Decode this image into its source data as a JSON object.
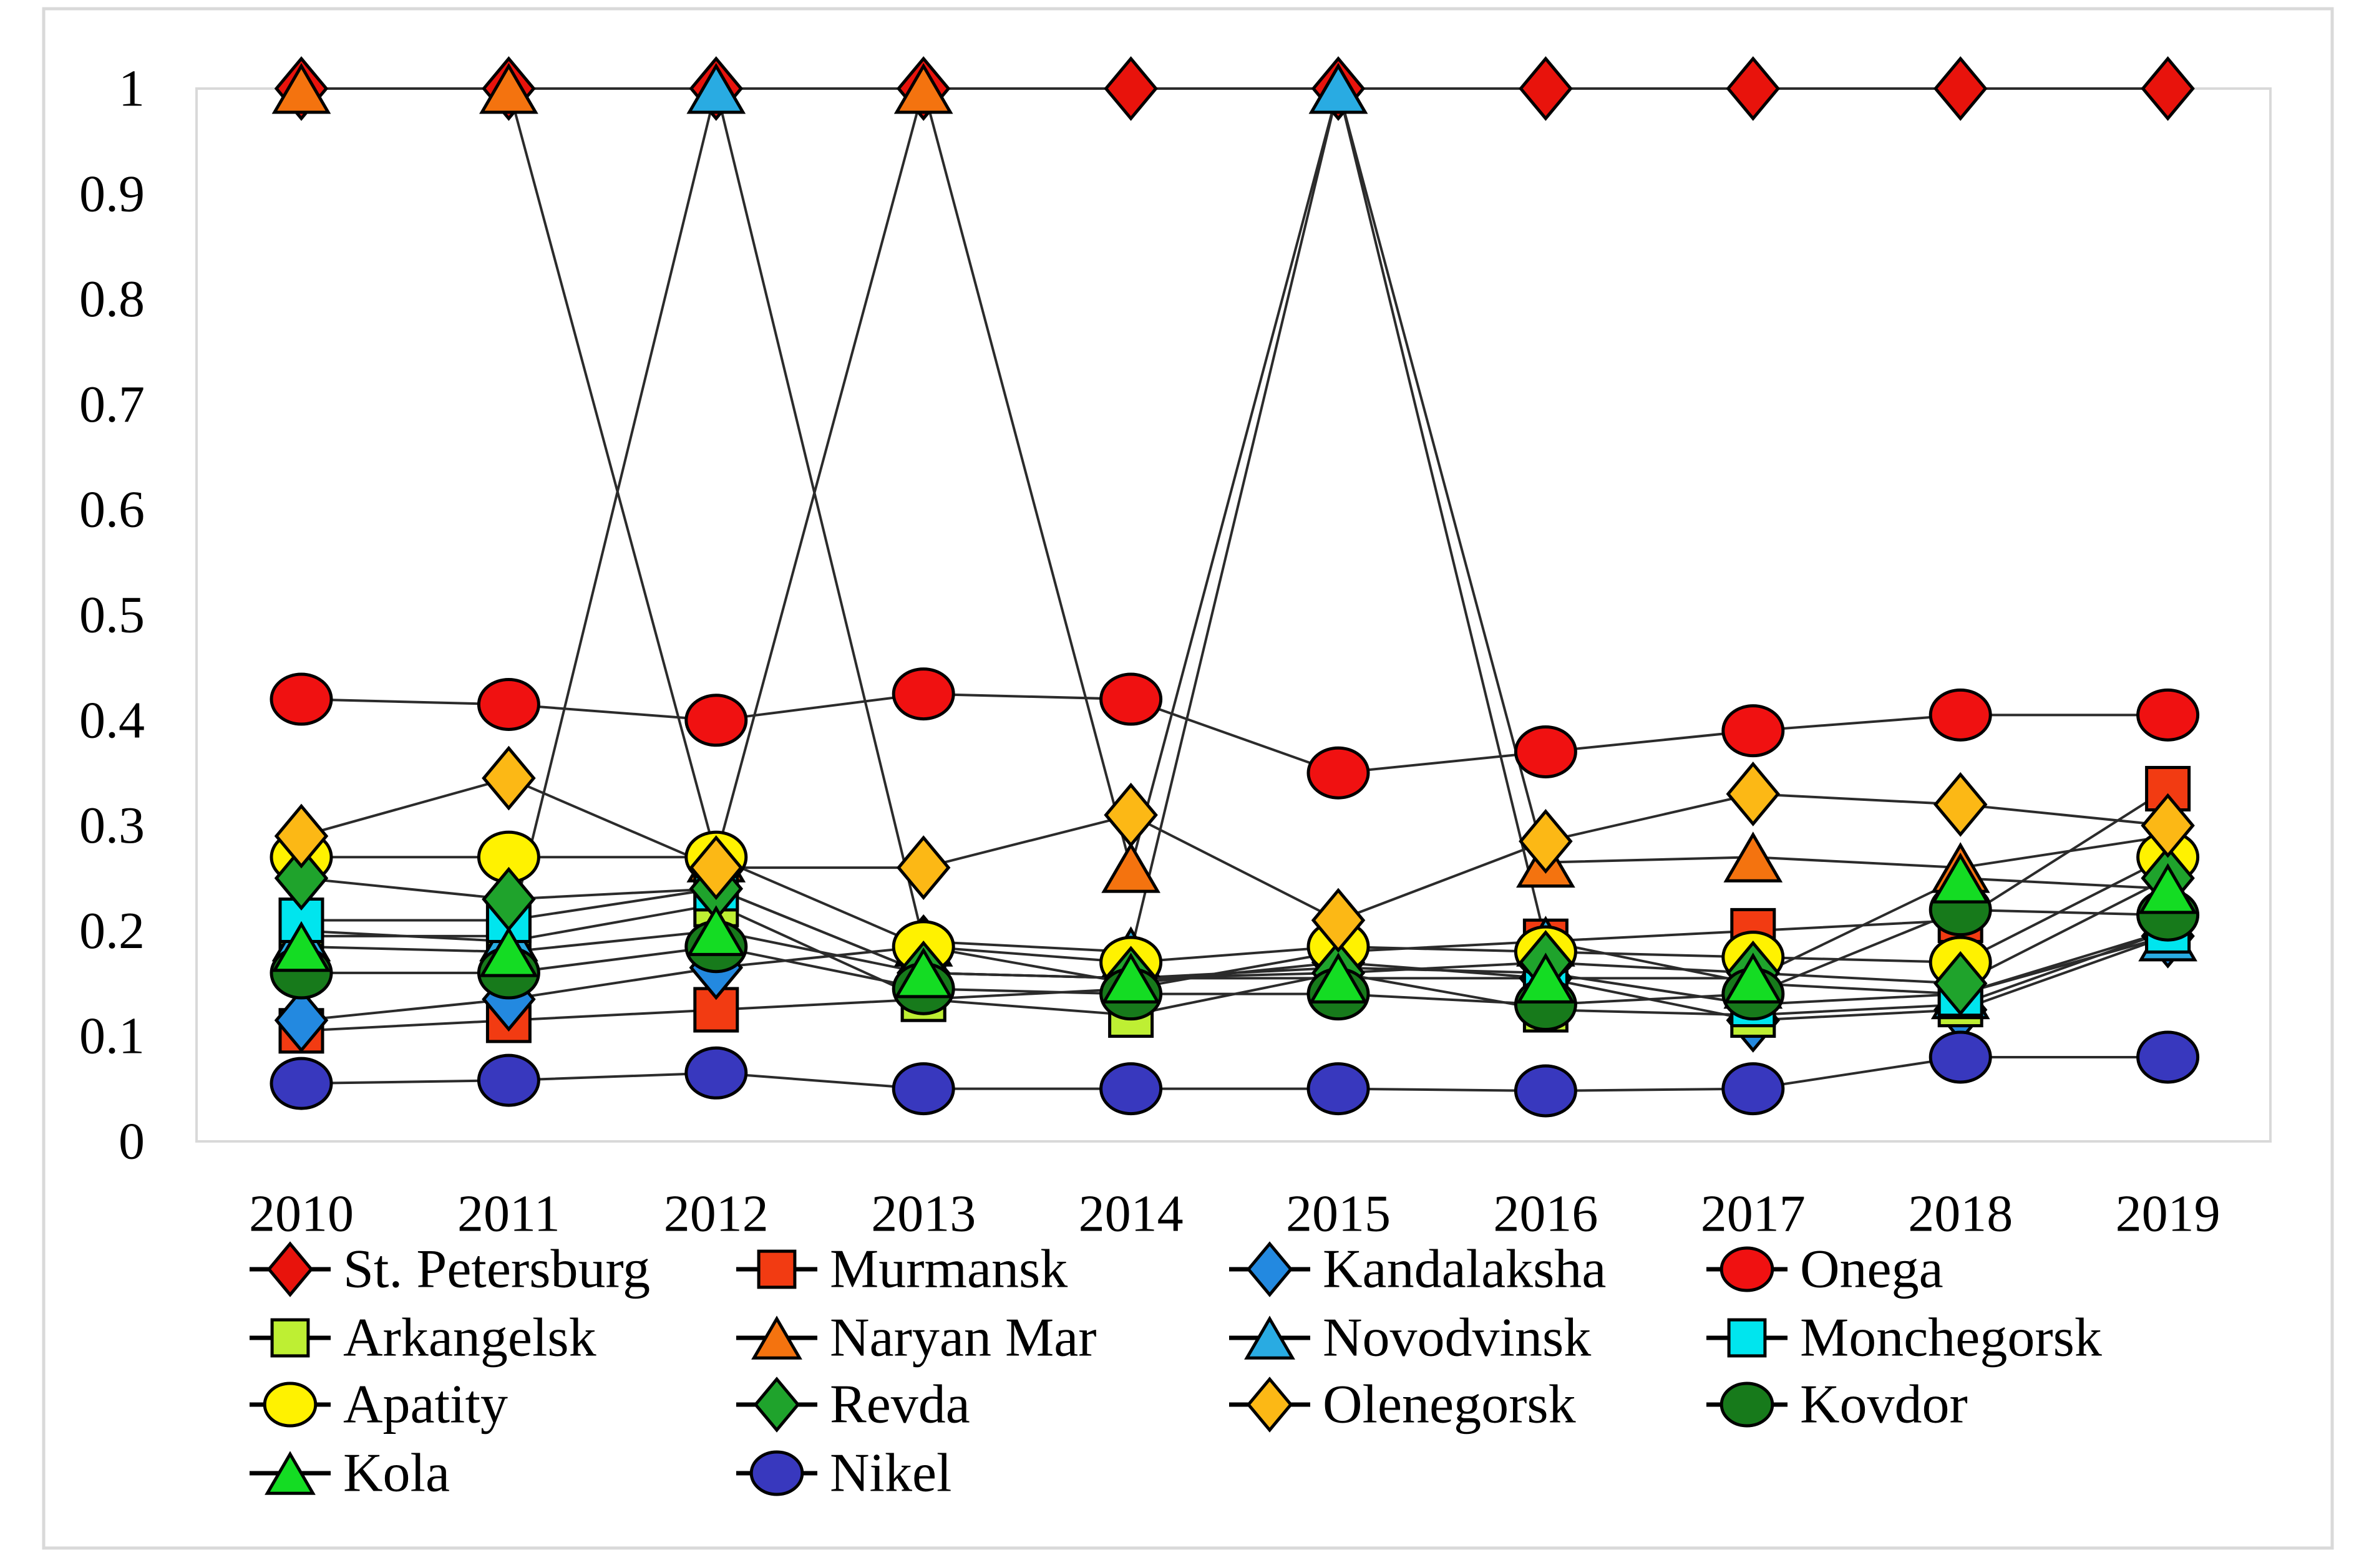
{
  "figure": {
    "border_color": "#D9D9D9",
    "plot_border_color": "#D9D9D9",
    "line_color": "#2B2B2B",
    "marker_outline_color": "#000000",
    "background": "#FFFFFF"
  },
  "chart_data": {
    "type": "line",
    "title": "",
    "xlabel": "",
    "ylabel": "",
    "x": [
      "2010",
      "2011",
      "2012",
      "2013",
      "2014",
      "2015",
      "2016",
      "2017",
      "2018",
      "2019"
    ],
    "ylim": [
      0,
      1
    ],
    "yticks": [
      {
        "value": 1,
        "label": "1"
      },
      {
        "value": 0.9,
        "label": "0.9"
      },
      {
        "value": 0.8,
        "label": "0.8"
      },
      {
        "value": 0.7,
        "label": "0.7"
      },
      {
        "value": 0.6,
        "label": "0.6"
      },
      {
        "value": 0.5,
        "label": "0.5"
      },
      {
        "value": 0.4,
        "label": "0.4"
      },
      {
        "value": 0.3,
        "label": "0.3"
      },
      {
        "value": 0.2,
        "label": "0.2"
      },
      {
        "value": 0.1,
        "label": "0.1"
      },
      {
        "value": 0,
        "label": "0"
      }
    ],
    "grid": false,
    "legend_position": "bottom",
    "series": [
      {
        "name": "St. Petersburg",
        "marker": "diamond",
        "color": "#E8130C",
        "values": [
          1,
          1,
          1,
          1,
          1,
          1,
          1,
          1,
          1,
          1
        ]
      },
      {
        "name": "Murmansk",
        "marker": "square",
        "color": "#F23B12",
        "values": [
          0.105,
          0.115,
          0.125,
          0.135,
          0.145,
          0.18,
          0.19,
          0.2,
          0.21,
          0.335
        ]
      },
      {
        "name": "Kandalaksha",
        "marker": "diamond",
        "color": "#2389E0",
        "values": [
          0.115,
          0.135,
          0.165,
          0.185,
          0.15,
          0.17,
          0.155,
          0.115,
          0.125,
          0.195
        ]
      },
      {
        "name": "Onega",
        "marker": "circle",
        "color": "#F01111",
        "values": [
          0.42,
          0.415,
          0.4,
          0.425,
          0.42,
          0.35,
          0.37,
          0.39,
          0.405,
          0.405
        ]
      },
      {
        "name": "Arkangelsk",
        "marker": "square",
        "color": "#BEEF33",
        "values": [
          0.2,
          0.19,
          0.225,
          0.135,
          0.12,
          0.16,
          0.125,
          0.12,
          0.13,
          0.2
        ]
      },
      {
        "name": "Naryan Mar",
        "marker": "triangle",
        "color": "#F4730F",
        "values": [
          1,
          1,
          0.27,
          1,
          0.26,
          1,
          0.265,
          0.27,
          0.26,
          0.29
        ]
      },
      {
        "name": "Novodvinsk",
        "marker": "triangle",
        "color": "#29ABE2",
        "values": [
          0.195,
          0.195,
          1,
          0.19,
          0.18,
          1,
          0.19,
          0.15,
          0.14,
          0.195
        ]
      },
      {
        "name": "Monchegorsk",
        "marker": "square",
        "color": "#00E5EE",
        "values": [
          0.21,
          0.21,
          0.24,
          0.16,
          0.155,
          0.165,
          0.16,
          0.13,
          0.14,
          0.2
        ]
      },
      {
        "name": "Apatity",
        "marker": "circle",
        "color": "#FFF200",
        "values": [
          0.27,
          0.27,
          0.27,
          0.185,
          0.17,
          0.185,
          0.18,
          0.175,
          0.17,
          0.27
        ]
      },
      {
        "name": "Revda",
        "marker": "diamond",
        "color": "#1FA32C",
        "values": [
          0.25,
          0.23,
          0.24,
          0.16,
          0.155,
          0.16,
          0.17,
          0.16,
          0.15,
          0.25
        ]
      },
      {
        "name": "Olenegorsk",
        "marker": "diamond",
        "color": "#FCB815",
        "values": [
          0.29,
          0.345,
          0.26,
          0.26,
          0.31,
          0.21,
          0.285,
          0.33,
          0.32,
          0.3
        ]
      },
      {
        "name": "Kovdor",
        "marker": "circle",
        "color": "#177A1B",
        "values": [
          0.16,
          0.16,
          0.185,
          0.145,
          0.14,
          0.14,
          0.13,
          0.14,
          0.22,
          0.215
        ]
      },
      {
        "name": "Kola",
        "marker": "triangle",
        "color": "#14DC23",
        "values": [
          0.185,
          0.18,
          0.2,
          0.16,
          0.155,
          0.155,
          0.155,
          0.155,
          0.25,
          0.24
        ]
      },
      {
        "name": "Nikel",
        "marker": "circle",
        "color": "#3838BE",
        "values": [
          0.055,
          0.058,
          0.065,
          0.05,
          0.05,
          0.05,
          0.048,
          0.05,
          0.08,
          0.08
        ]
      }
    ],
    "legend_rows": [
      [
        0,
        1,
        2,
        3
      ],
      [
        4,
        5,
        6,
        7
      ],
      [
        8,
        9,
        10,
        11
      ],
      [
        12,
        13
      ]
    ]
  }
}
